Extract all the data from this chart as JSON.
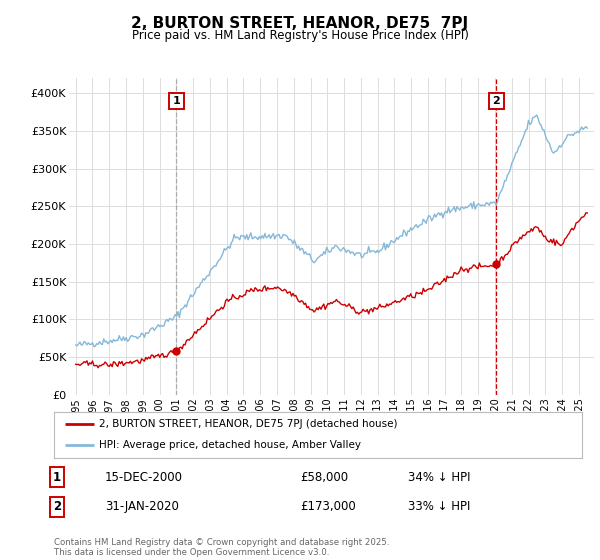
{
  "title": "2, BURTON STREET, HEANOR, DE75  7PJ",
  "subtitle": "Price paid vs. HM Land Registry's House Price Index (HPI)",
  "background_color": "#ffffff",
  "plot_background": "#ffffff",
  "grid_color": "#dddddd",
  "hpi_line_color": "#85b8d9",
  "sale_line_color": "#cc0000",
  "vline1_color": "#aaaaaa",
  "vline2_color": "#cc0000",
  "ylim": [
    0,
    420000
  ],
  "yticks": [
    0,
    50000,
    100000,
    150000,
    200000,
    250000,
    300000,
    350000,
    400000
  ],
  "ytick_labels": [
    "£0",
    "£50K",
    "£100K",
    "£150K",
    "£200K",
    "£250K",
    "£300K",
    "£350K",
    "£400K"
  ],
  "sale1_year": 2001.0,
  "sale1_price": 58000,
  "sale2_year": 2020.08,
  "sale2_price": 173000,
  "legend_entries": [
    "2, BURTON STREET, HEANOR, DE75 7PJ (detached house)",
    "HPI: Average price, detached house, Amber Valley"
  ],
  "annotation1_date": "15-DEC-2000",
  "annotation1_price": "£58,000",
  "annotation1_hpi": "34% ↓ HPI",
  "annotation2_date": "31-JAN-2020",
  "annotation2_price": "£173,000",
  "annotation2_hpi": "33% ↓ HPI",
  "footer": "Contains HM Land Registry data © Crown copyright and database right 2025.\nThis data is licensed under the Open Government Licence v3.0."
}
